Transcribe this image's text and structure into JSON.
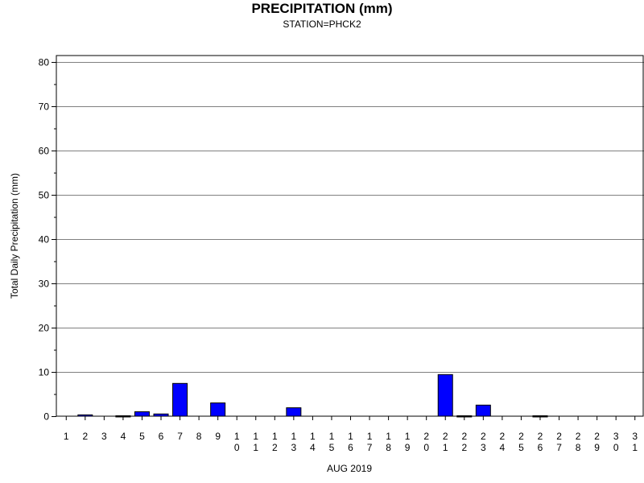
{
  "chart_data": {
    "type": "bar",
    "title": "PRECIPITATION (mm)",
    "subtitle": "STATION=PHCK2",
    "xlabel": "AUG 2019",
    "ylabel": "Total Daily Precipitation (mm)",
    "ylim": [
      0,
      80
    ],
    "yticks": [
      0,
      10,
      20,
      30,
      40,
      50,
      60,
      70,
      80
    ],
    "grid": true,
    "bar_color": "#0000ff",
    "categories": [
      "1",
      "2",
      "3",
      "4",
      "5",
      "6",
      "7",
      "8",
      "9",
      "10",
      "11",
      "12",
      "13",
      "14",
      "15",
      "16",
      "17",
      "18",
      "19",
      "20",
      "21",
      "22",
      "23",
      "24",
      "25",
      "26",
      "27",
      "28",
      "29",
      "30",
      "31"
    ],
    "values": [
      0,
      0.3,
      0,
      0.1,
      1.0,
      0.5,
      7.4,
      0,
      3.0,
      0,
      0,
      0,
      1.9,
      0,
      0,
      0,
      0,
      0,
      0,
      0,
      9.4,
      0.1,
      2.5,
      0,
      0,
      0.1,
      0,
      0,
      0,
      0,
      0
    ]
  }
}
